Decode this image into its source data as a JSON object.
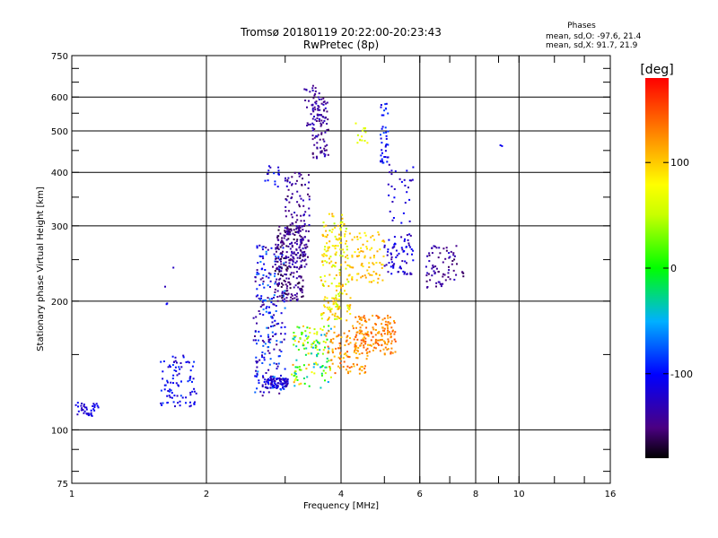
{
  "chart_data": {
    "type": "scatter",
    "title": "Tromsø 20180119 20:22:00-20:23:43",
    "subtitle": "RwPretec (8p)",
    "xlabel": "Frequency [MHz]",
    "ylabel": "Stationary phase Virtual Height [km]",
    "x_scale": "log",
    "y_scale": "log",
    "xlim": [
      1,
      16
    ],
    "ylim": [
      75,
      750
    ],
    "x_ticks": [
      1,
      2,
      4,
      6,
      8,
      10,
      16
    ],
    "x_tick_labels": [
      "1",
      "2",
      "4",
      "6",
      "8",
      "10",
      "16"
    ],
    "y_ticks": [
      75,
      100,
      200,
      300,
      400,
      500,
      600,
      750
    ],
    "y_tick_labels": [
      "75",
      "100",
      "200",
      "300",
      "400",
      "500",
      "600",
      "750"
    ],
    "grid": true,
    "stats": {
      "header": "Phases",
      "line_o": "mean, sd,O: -97.6, 21.4",
      "line_x": "mean, sd,X:  91.7, 21.9"
    },
    "colorbar": {
      "label": "[deg]",
      "range": [
        -180,
        180
      ],
      "ticks": [
        100,
        0,
        -100
      ],
      "tick_labels": [
        "100",
        "0",
        "-100"
      ]
    },
    "clusters": [
      {
        "x": [
          1.02,
          1.12
        ],
        "y": [
          108,
          116
        ],
        "phase": [
          -130,
          -100
        ],
        "n": 28
      },
      {
        "x": [
          1.1,
          1.15
        ],
        "y": [
          106,
          116
        ],
        "phase": [
          -120,
          -100
        ],
        "n": 12
      },
      {
        "x": [
          1.58,
          1.9
        ],
        "y": [
          113,
          150
        ],
        "phase": [
          -130,
          -80
        ],
        "n": 90
      },
      {
        "x": [
          1.6,
          1.7
        ],
        "y": [
          195,
          240
        ],
        "phase": [
          -130,
          -100
        ],
        "n": 4
      },
      {
        "x": [
          2.55,
          3.0
        ],
        "y": [
          120,
          270
        ],
        "phase": [
          -150,
          -60
        ],
        "n": 240
      },
      {
        "x": [
          2.7,
          3.05
        ],
        "y": [
          125,
          132
        ],
        "phase": [
          -140,
          -100
        ],
        "n": 80
      },
      {
        "x": [
          2.85,
          3.3
        ],
        "y": [
          200,
          300
        ],
        "phase": [
          -170,
          -130
        ],
        "n": 230
      },
      {
        "x": [
          2.7,
          2.95
        ],
        "y": [
          360,
          420
        ],
        "phase": [
          -130,
          -90
        ],
        "n": 16
      },
      {
        "x": [
          3.0,
          3.4
        ],
        "y": [
          240,
          400
        ],
        "phase": [
          -160,
          -120
        ],
        "n": 130
      },
      {
        "x": [
          3.45,
          3.75
        ],
        "y": [
          430,
          600
        ],
        "phase": [
          -160,
          -120
        ],
        "n": 90
      },
      {
        "x": [
          3.3,
          3.6
        ],
        "y": [
          510,
          640
        ],
        "phase": [
          -150,
          -120
        ],
        "n": 30
      },
      {
        "x": [
          3.6,
          4.2
        ],
        "y": [
          180,
          320
        ],
        "phase": [
          40,
          120
        ],
        "n": 200
      },
      {
        "x": [
          3.1,
          3.8
        ],
        "y": [
          125,
          175
        ],
        "phase": [
          -60,
          120
        ],
        "n": 140
      },
      {
        "x": [
          3.7,
          4.6
        ],
        "y": [
          135,
          175
        ],
        "phase": [
          100,
          150
        ],
        "n": 110
      },
      {
        "x": [
          4.3,
          5.3
        ],
        "y": [
          150,
          185
        ],
        "phase": [
          110,
          150
        ],
        "n": 150
      },
      {
        "x": [
          4.2,
          5.0
        ],
        "y": [
          220,
          290
        ],
        "phase": [
          80,
          120
        ],
        "n": 80
      },
      {
        "x": [
          4.3,
          4.6
        ],
        "y": [
          460,
          530
        ],
        "phase": [
          50,
          90
        ],
        "n": 14
      },
      {
        "x": [
          4.9,
          5.1
        ],
        "y": [
          420,
          580
        ],
        "phase": [
          -120,
          -80
        ],
        "n": 40
      },
      {
        "x": [
          5.0,
          5.8
        ],
        "y": [
          230,
          290
        ],
        "phase": [
          -140,
          -100
        ],
        "n": 70
      },
      {
        "x": [
          5.1,
          5.8
        ],
        "y": [
          300,
          420
        ],
        "phase": [
          -140,
          -100
        ],
        "n": 30
      },
      {
        "x": [
          6.2,
          7.3
        ],
        "y": [
          215,
          270
        ],
        "phase": [
          -160,
          -120
        ],
        "n": 70
      },
      {
        "x": [
          7.4,
          7.6
        ],
        "y": [
          228,
          235
        ],
        "phase": [
          -160,
          -150
        ],
        "n": 4
      },
      {
        "x": [
          9.0,
          9.2
        ],
        "y": [
          460,
          470
        ],
        "phase": [
          -110,
          -100
        ],
        "n": 2
      }
    ]
  }
}
